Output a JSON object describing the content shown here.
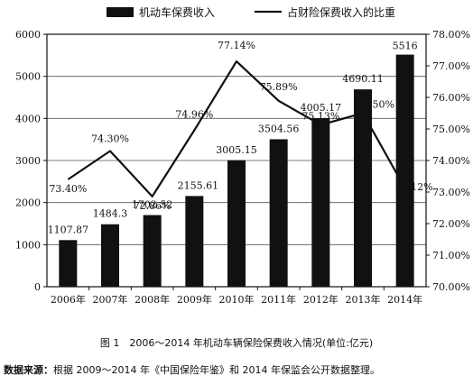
{
  "chart_data": {
    "type": "bar",
    "categories": [
      "2006年",
      "2007年",
      "2008年",
      "2009年",
      "2010年",
      "2011年",
      "2012年",
      "2013年",
      "2014年"
    ],
    "series": [
      {
        "name": "机动车保费收入",
        "kind": "bar",
        "axis": "left",
        "color": "#111111",
        "values": [
          1107.87,
          1484.3,
          1702.52,
          2155.61,
          3005.15,
          3504.56,
          4005.17,
          4690.11,
          5516
        ],
        "labels": [
          "1107.87",
          "1484.3",
          "1702.52",
          "2155.61",
          "3005.15",
          "3504.56",
          "4005.17",
          "4690.11",
          "5516"
        ]
      },
      {
        "name": "占财险保费收入的比重",
        "kind": "line",
        "axis": "right",
        "color": "#111111",
        "values": [
          73.4,
          74.3,
          72.86,
          74.96,
          77.14,
          75.89,
          75.13,
          75.5,
          73.12
        ],
        "labels": [
          "73.40%",
          "74.30%",
          "72.86%",
          "74.96%",
          "77.14%",
          "75.89%",
          "75.13%",
          "75.50%",
          "73.12%"
        ]
      }
    ],
    "y_left": {
      "ylim": [
        0,
        6000
      ],
      "ticks": [
        0,
        1000,
        2000,
        3000,
        4000,
        5000,
        6000
      ]
    },
    "y_right": {
      "ylim": [
        70,
        78
      ],
      "ticks": [
        70,
        71,
        72,
        73,
        74,
        75,
        76,
        77,
        78
      ],
      "tick_labels": [
        "70.00%",
        "71.00%",
        "72.00%",
        "73.00%",
        "74.00%",
        "75.00%",
        "76.00%",
        "77.00%",
        "78.00%"
      ]
    },
    "grid": "horizontal",
    "legend": "top"
  },
  "caption": "图 1　2006～2014 年机动车辆保险保费收入情况(单位:亿元)",
  "source": {
    "label": "数据来源：",
    "text": "根据 2009～2014 年《中国保险年鉴》和 2014 年保监会公开数据整理。"
  }
}
